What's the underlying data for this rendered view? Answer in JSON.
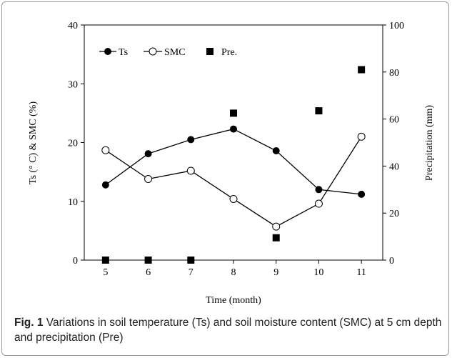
{
  "chart_data": {
    "type": "line",
    "xlabel": "Time (month)",
    "ylabel_left": "Ts (° C) & SMC (%)",
    "ylabel_right": "Precipitation (mm)",
    "x": [
      5,
      6,
      7,
      8,
      9,
      10,
      11
    ],
    "x_ticks": [
      "5",
      "6",
      "7",
      "8",
      "9",
      "10",
      "11"
    ],
    "ylim_left": [
      0,
      40
    ],
    "yticks_left": [
      "0",
      "10",
      "20",
      "30",
      "40"
    ],
    "ylim_right": [
      0,
      100
    ],
    "yticks_right": [
      "0",
      "20",
      "40",
      "60",
      "80",
      "100"
    ],
    "grid": false,
    "legend_position": "top-left",
    "series": [
      {
        "name": "Ts",
        "axis": "left",
        "marker": "filled-circle",
        "values": [
          12.8,
          18.1,
          20.5,
          22.3,
          18.6,
          12.0,
          11.2
        ]
      },
      {
        "name": "SMC",
        "axis": "left",
        "marker": "open-circle",
        "values": [
          18.7,
          13.8,
          15.2,
          10.4,
          5.7,
          9.6,
          21.0
        ]
      },
      {
        "name": "Pre.",
        "axis": "right",
        "marker": "filled-square",
        "line": false,
        "values": [
          0,
          0,
          0,
          62.5,
          9.5,
          63.5,
          81.0
        ]
      }
    ]
  },
  "caption": {
    "label": "Fig. 1",
    "text": " Variations in soil temperature (Ts) and soil moisture content (SMC) at 5 cm depth and precipitation (Pre)"
  }
}
